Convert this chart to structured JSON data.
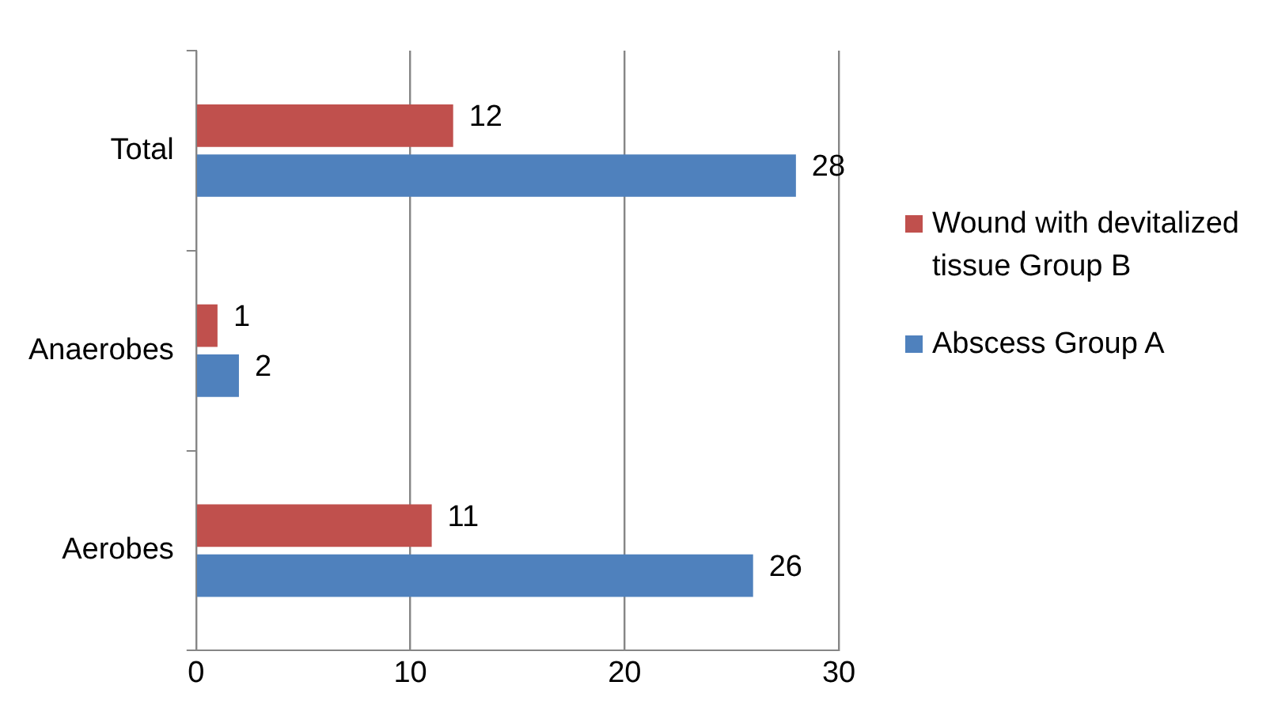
{
  "chart_data": {
    "type": "bar",
    "orientation": "horizontal",
    "categories": [
      "Total",
      "Anaerobes",
      "Aerobes"
    ],
    "series": [
      {
        "name": "Wound with devitalized tissue Group B",
        "color": "#c0504d",
        "values": [
          12,
          1,
          11
        ]
      },
      {
        "name": "Abscess Group A",
        "color": "#4f81bd",
        "values": [
          28,
          2,
          26
        ]
      }
    ],
    "xlim": [
      0,
      30
    ],
    "xticks": [
      0,
      10,
      20,
      30
    ],
    "grid": "x",
    "legend": "right",
    "data_labels": true
  }
}
